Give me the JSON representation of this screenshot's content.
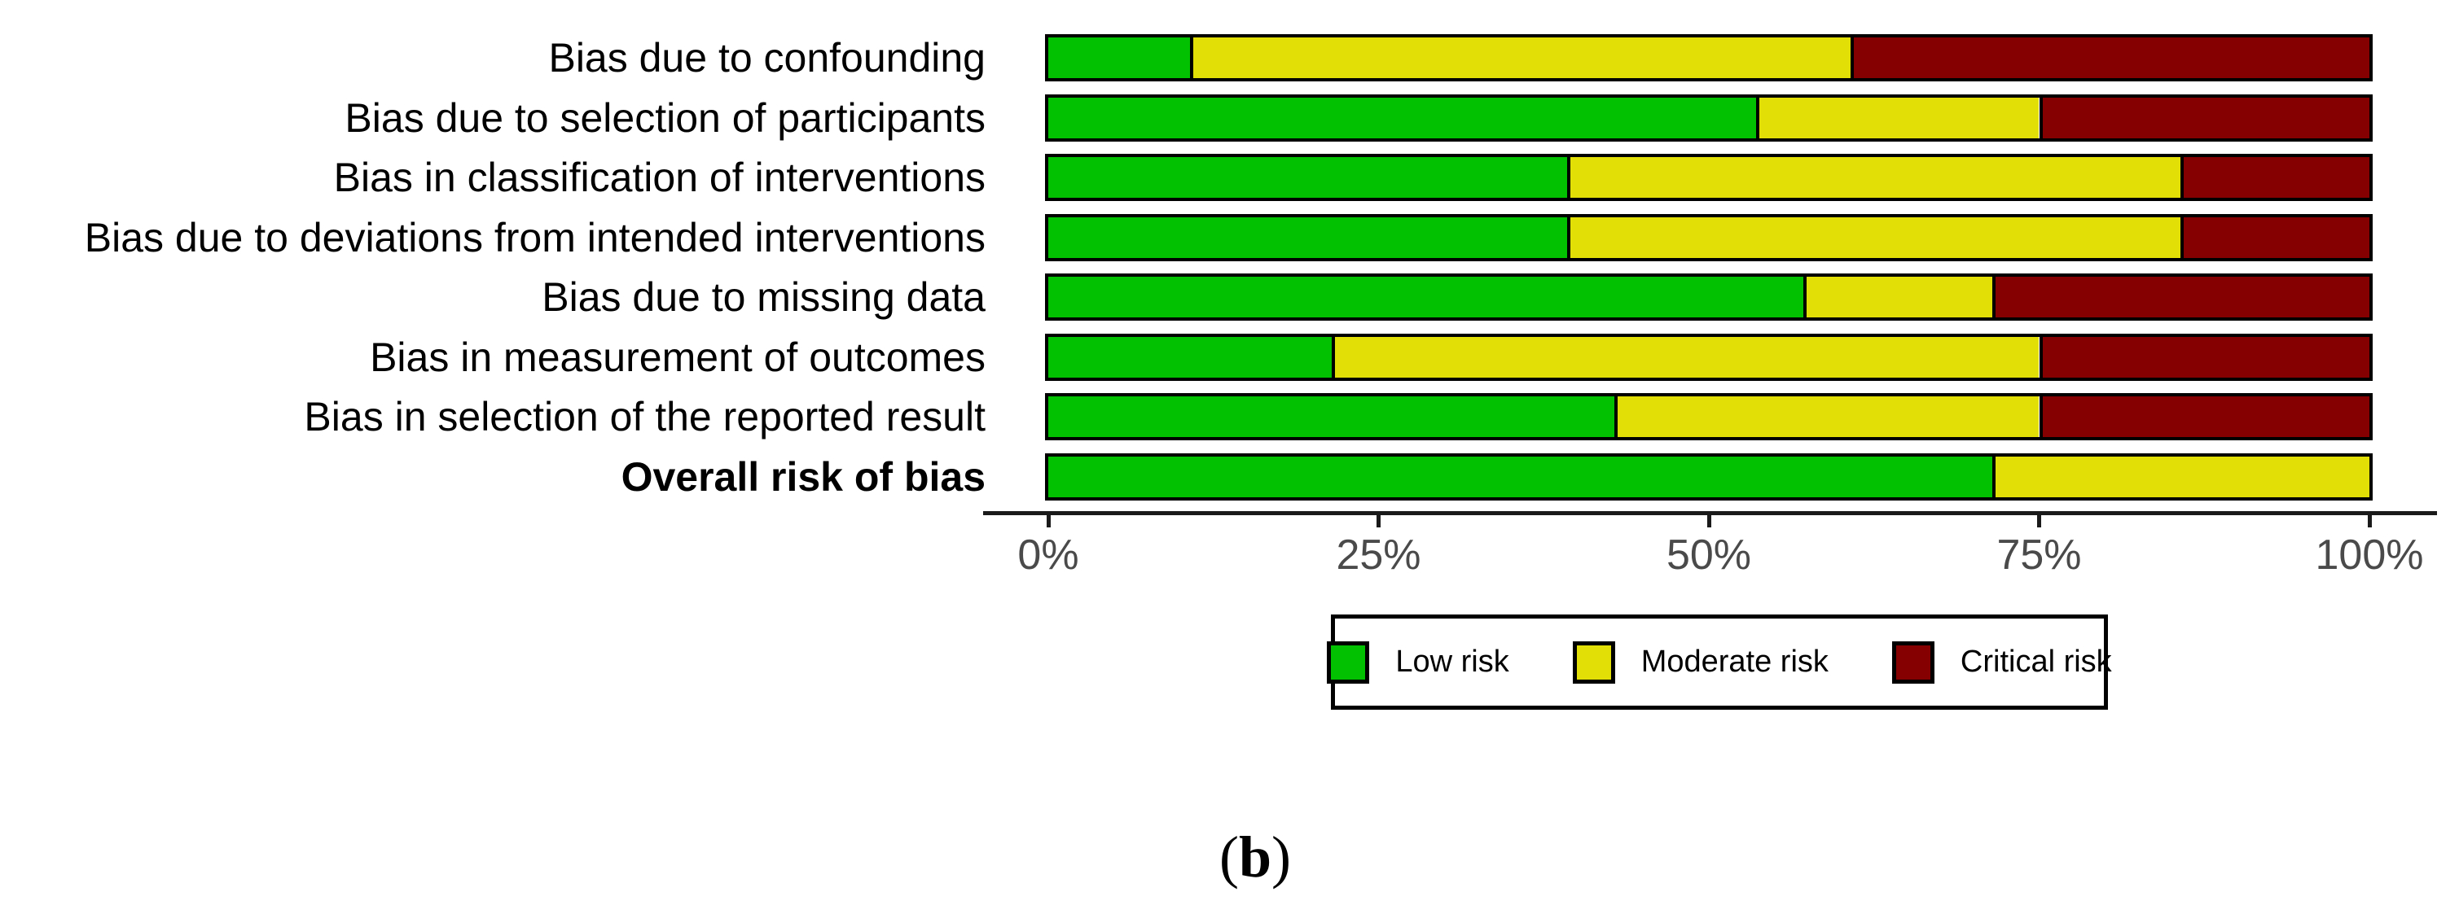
{
  "figure": {
    "caption_prefix": "(",
    "caption_letter": "b",
    "caption_suffix": ")"
  },
  "colors": {
    "low": "#02C100",
    "moderate": "#E2DF07",
    "critical": "#850000",
    "axis_text": "#4a4a4a",
    "bar_border": "#000000"
  },
  "legend": {
    "items": [
      {
        "key": "low",
        "label": "Low risk"
      },
      {
        "key": "moderate",
        "label": "Moderate risk"
      },
      {
        "key": "critical",
        "label": "Critical risk"
      }
    ]
  },
  "axis": {
    "tick_labels": [
      "0%",
      "25%",
      "50%",
      "75%",
      "100%"
    ],
    "tick_positions": [
      0,
      25,
      50,
      75,
      100
    ]
  },
  "chart_data": {
    "type": "bar",
    "orientation": "horizontal-stacked",
    "unit": "percent of studies",
    "title": "",
    "xlabel": "",
    "ylabel": "",
    "xlim": [
      0,
      100
    ],
    "grid": false,
    "legend_position": "bottom",
    "categories": [
      "Bias due to confounding",
      "Bias due to selection of participants",
      "Bias in classification of interventions",
      "Bias due to deviations from intended interventions",
      "Bias due to missing data",
      "Bias in measurement of outcomes",
      "Bias in selection of the reported result",
      "Overall risk of bias"
    ],
    "bold_category": "Overall risk of bias",
    "series": [
      {
        "name": "Low risk",
        "color_key": "low",
        "values": [
          10.71,
          53.57,
          39.29,
          39.29,
          57.14,
          21.43,
          42.86,
          71.43
        ]
      },
      {
        "name": "Moderate risk",
        "color_key": "moderate",
        "values": [
          50.0,
          21.43,
          46.43,
          46.43,
          14.29,
          53.57,
          32.14,
          28.57
        ]
      },
      {
        "name": "Critical risk",
        "color_key": "critical",
        "values": [
          39.29,
          25.0,
          14.29,
          14.29,
          28.57,
          25.0,
          25.0,
          0
        ]
      }
    ]
  }
}
